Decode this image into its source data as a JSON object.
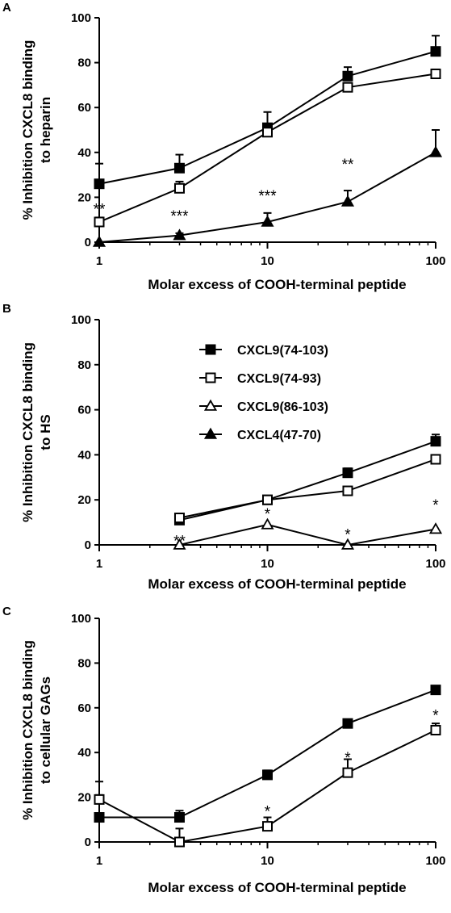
{
  "chart_data": [
    {
      "panel": "A",
      "type": "line",
      "xscale": "log",
      "xlim": [
        1,
        100
      ],
      "ylim": [
        0,
        100
      ],
      "xticks": [
        "1",
        "10",
        "100"
      ],
      "yticks": [
        "0",
        "20",
        "40",
        "60",
        "80",
        "100"
      ],
      "xlabel": "Molar excess of COOH-terminal peptide",
      "ylabel": "% Inhibition CXCL8 binding to heparin",
      "ylabel_lines": [
        "% Inhibition CXCL8 binding",
        "to heparin"
      ],
      "series": [
        {
          "marker": "filled-square",
          "points": [
            {
              "x": 1,
              "y": 26,
              "err": 9
            },
            {
              "x": 3,
              "y": 33,
              "err": 6
            },
            {
              "x": 10,
              "y": 51,
              "err": 7
            },
            {
              "x": 30,
              "y": 74,
              "err": 4
            },
            {
              "x": 100,
              "y": 85,
              "err": 7
            }
          ]
        },
        {
          "marker": "open-square",
          "points": [
            {
              "x": 1,
              "y": 9,
              "err": 2
            },
            {
              "x": 3,
              "y": 24,
              "err": 3
            },
            {
              "x": 10,
              "y": 49,
              "err": 2
            },
            {
              "x": 30,
              "y": 69,
              "err": 2
            },
            {
              "x": 100,
              "y": 75,
              "err": 2
            }
          ]
        },
        {
          "marker": "filled-triangle",
          "points": [
            {
              "x": 1,
              "y": 0
            },
            {
              "x": 3,
              "y": 3,
              "err": 1
            },
            {
              "x": 10,
              "y": 9,
              "err": 4
            },
            {
              "x": 30,
              "y": 18,
              "err": 5
            },
            {
              "x": 100,
              "y": 40,
              "err": 10
            }
          ]
        }
      ],
      "annotations": [
        {
          "x": 1,
          "y": 16,
          "text": "**"
        },
        {
          "x": 3,
          "y": 13,
          "text": "***"
        },
        {
          "x": 10,
          "y": 22,
          "text": "***"
        },
        {
          "x": 30,
          "y": 36,
          "text": "**"
        }
      ]
    },
    {
      "panel": "B",
      "type": "line",
      "xscale": "log",
      "xlim": [
        1,
        100
      ],
      "ylim": [
        0,
        100
      ],
      "xticks": [
        "1",
        "10",
        "100"
      ],
      "yticks": [
        "0",
        "20",
        "40",
        "60",
        "80",
        "100"
      ],
      "xlabel": "Molar excess of COOH-terminal peptide",
      "ylabel": "% Inhibition CXCL8 binding to HS",
      "ylabel_lines": [
        "% Inhibition  CXCL8 binding",
        "to HS"
      ],
      "legend": [
        {
          "marker": "filled-square",
          "label": "CXCL9(74-103)"
        },
        {
          "marker": "open-square",
          "label": "CXCL9(74-93)"
        },
        {
          "marker": "open-triangle",
          "label": "CXCL9(86-103)"
        },
        {
          "marker": "filled-triangle",
          "label": "CXCL4(47-70)"
        }
      ],
      "series": [
        {
          "name": "CXCL9(74-103)",
          "marker": "filled-square",
          "points": [
            {
              "x": 3,
              "y": 11
            },
            {
              "x": 10,
              "y": 20
            },
            {
              "x": 30,
              "y": 32,
              "err": 2
            },
            {
              "x": 100,
              "y": 46,
              "err": 3
            }
          ]
        },
        {
          "name": "CXCL9(74-93)",
          "marker": "open-square",
          "points": [
            {
              "x": 3,
              "y": 12
            },
            {
              "x": 10,
              "y": 20
            },
            {
              "x": 30,
              "y": 24
            },
            {
              "x": 100,
              "y": 38
            }
          ]
        },
        {
          "name": "CXCL9(86-103)",
          "marker": "open-triangle",
          "points": [
            {
              "x": 3,
              "y": 0
            },
            {
              "x": 10,
              "y": 9
            },
            {
              "x": 30,
              "y": 0
            },
            {
              "x": 100,
              "y": 7
            }
          ]
        }
      ],
      "annotations": [
        {
          "x": 3,
          "y": 3,
          "text": "**"
        },
        {
          "x": 10,
          "y": 15,
          "text": "*"
        },
        {
          "x": 30,
          "y": 6,
          "text": "*"
        },
        {
          "x": 100,
          "y": 19,
          "text": "*"
        }
      ]
    },
    {
      "panel": "C",
      "type": "line",
      "xscale": "log",
      "xlim": [
        1,
        100
      ],
      "ylim": [
        0,
        100
      ],
      "xticks": [
        "1",
        "10",
        "100"
      ],
      "yticks": [
        "0",
        "20",
        "40",
        "60",
        "80",
        "100"
      ],
      "xlabel": "Molar excess of COOH-terminal peptide",
      "ylabel": "% Inhibition CXCL8 binding to cellular GAGs",
      "ylabel_lines": [
        "% Inhibition CXCL8 binding",
        "to cellular GAGs"
      ],
      "series": [
        {
          "marker": "filled-square",
          "points": [
            {
              "x": 1,
              "y": 11,
              "err": 16
            },
            {
              "x": 3,
              "y": 11,
              "err": 3
            },
            {
              "x": 10,
              "y": 30,
              "err": 2
            },
            {
              "x": 30,
              "y": 53,
              "err": 1
            },
            {
              "x": 100,
              "y": 68
            }
          ]
        },
        {
          "marker": "open-square",
          "points": [
            {
              "x": 1,
              "y": 19,
              "err": 2
            },
            {
              "x": 3,
              "y": 0,
              "err": 6
            },
            {
              "x": 10,
              "y": 7,
              "err": 4
            },
            {
              "x": 30,
              "y": 31,
              "err": 6
            },
            {
              "x": 100,
              "y": 50,
              "err": 3
            }
          ]
        }
      ],
      "annotations": [
        {
          "x": 10,
          "y": 15,
          "text": "*"
        },
        {
          "x": 30,
          "y": 39,
          "text": "*"
        },
        {
          "x": 100,
          "y": 58,
          "text": "*"
        }
      ]
    }
  ]
}
